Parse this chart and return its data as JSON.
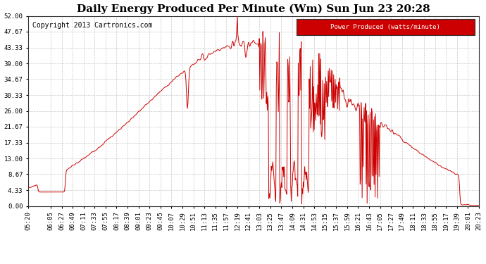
{
  "title": "Daily Energy Produced Per Minute (Wm) Sun Jun 23 20:28",
  "copyright": "Copyright 2013 Cartronics.com",
  "legend_label": "Power Produced (watts/minute)",
  "legend_bg": "#cc0000",
  "legend_text_color": "#ffffff",
  "line_color": "#cc0000",
  "background_color": "#ffffff",
  "grid_color": "#c8c8c8",
  "ylim": [
    0,
    52.0
  ],
  "yticks": [
    0.0,
    4.33,
    8.67,
    13.0,
    17.33,
    21.67,
    26.0,
    30.33,
    34.67,
    39.0,
    43.33,
    47.67,
    52.0
  ],
  "title_fontsize": 11,
  "copyright_fontsize": 7,
  "axis_fontsize": 6.5,
  "tick_times": [
    "05:20",
    "06:05",
    "06:27",
    "06:49",
    "07:11",
    "07:33",
    "07:55",
    "08:17",
    "08:39",
    "09:01",
    "09:23",
    "09:45",
    "10:07",
    "10:29",
    "10:51",
    "11:13",
    "11:35",
    "11:57",
    "12:19",
    "12:41",
    "13:03",
    "13:25",
    "13:47",
    "14:09",
    "14:31",
    "14:53",
    "15:15",
    "15:37",
    "15:59",
    "16:21",
    "16:43",
    "17:05",
    "17:27",
    "17:49",
    "18:11",
    "18:33",
    "18:55",
    "19:17",
    "19:39",
    "20:01",
    "20:23"
  ]
}
